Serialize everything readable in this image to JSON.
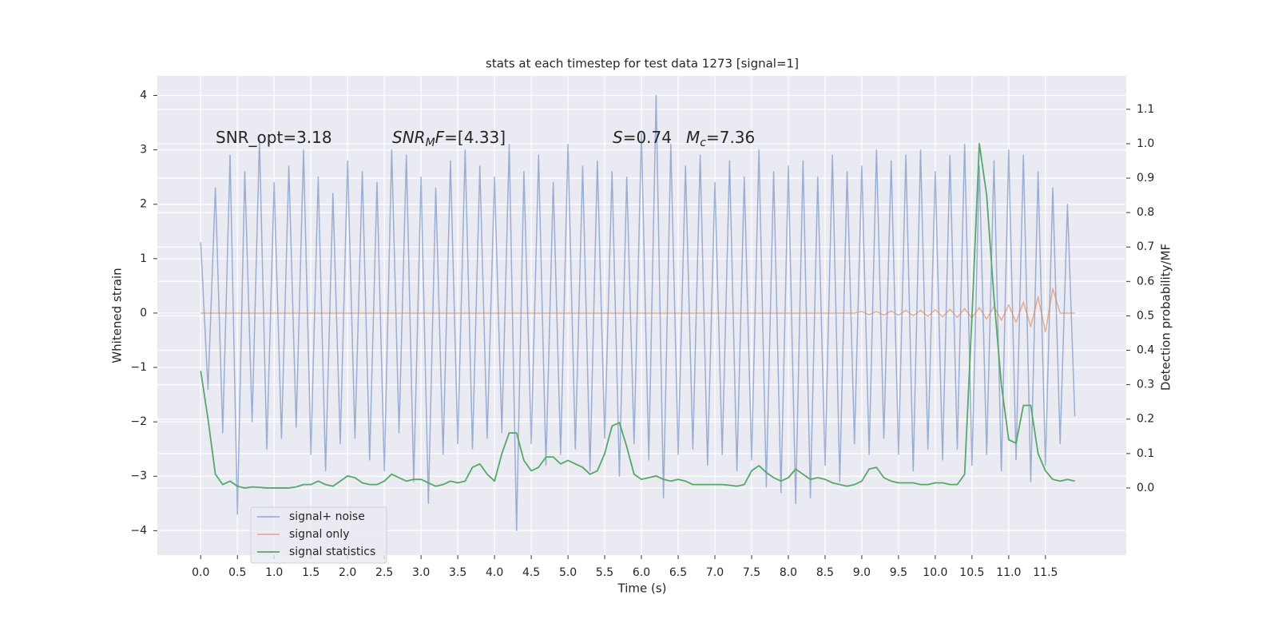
{
  "chart_data": {
    "type": "line",
    "title": "stats at each timestep for test data 1273 [signal=1]",
    "x_label": "Time (s)",
    "y_label": "Whitened strain",
    "y2_label": "Detection probability/MF",
    "annotations": [
      [
        {
          "text": "SNR_opt=3.18",
          "style": "normal"
        }
      ],
      [
        {
          "text": "SNR",
          "style": "italic"
        },
        {
          "text": "M",
          "style": "sub"
        },
        {
          "text": "F",
          "style": "italic"
        },
        {
          "text": "=[4.33]",
          "style": "normal"
        }
      ],
      [
        {
          "text": "S",
          "style": "italic"
        },
        {
          "text": "=0.74",
          "style": "normal"
        }
      ],
      [
        {
          "text": "M",
          "style": "italic"
        },
        {
          "text": "c",
          "style": "sub"
        },
        {
          "text": "=7.36",
          "style": "normal"
        }
      ]
    ],
    "x": [
      0,
      0.1,
      0.2,
      0.3,
      0.4,
      0.5,
      0.6,
      0.7,
      0.8,
      0.9,
      1,
      1.1,
      1.2,
      1.3,
      1.4,
      1.5,
      1.6,
      1.7,
      1.8,
      1.9,
      2,
      2.1,
      2.2,
      2.3,
      2.4,
      2.5,
      2.6,
      2.7,
      2.8,
      2.9,
      3,
      3.1,
      3.2,
      3.3,
      3.4,
      3.5,
      3.6,
      3.7,
      3.8,
      3.9,
      4,
      4.1,
      4.2,
      4.3,
      4.4,
      4.5,
      4.6,
      4.7,
      4.8,
      4.9,
      5,
      5.1,
      5.2,
      5.3,
      5.4,
      5.5,
      5.6,
      5.7,
      5.8,
      5.9,
      6,
      6.1,
      6.2,
      6.3,
      6.4,
      6.5,
      6.6,
      6.7,
      6.8,
      6.9,
      7,
      7.1,
      7.2,
      7.3,
      7.4,
      7.5,
      7.6,
      7.7,
      7.8,
      7.9,
      8,
      8.1,
      8.2,
      8.3,
      8.4,
      8.5,
      8.6,
      8.7,
      8.8,
      8.9,
      9,
      9.1,
      9.2,
      9.3,
      9.4,
      9.5,
      9.6,
      9.7,
      9.8,
      9.9,
      10,
      10.1,
      10.2,
      10.3,
      10.4,
      10.5,
      10.6,
      10.7,
      10.8,
      10.9,
      11,
      11.1,
      11.2,
      11.3,
      11.4,
      11.5,
      11.6,
      11.7,
      11.8,
      11.9
    ],
    "series": [
      {
        "name": "signal+ noise",
        "color": "#4c72b0",
        "opacity": 0.5,
        "values": [
          1.3,
          -1.4,
          2.3,
          -2.2,
          2.9,
          -3.7,
          2.6,
          -2.0,
          3.2,
          -2.5,
          2.4,
          -2.3,
          2.7,
          -2.1,
          3.0,
          -2.6,
          2.5,
          -2.9,
          2.2,
          -2.4,
          2.8,
          -2.3,
          2.6,
          -2.7,
          2.4,
          -2.9,
          3.0,
          -2.2,
          2.9,
          -3.1,
          2.5,
          -3.5,
          2.3,
          -2.6,
          2.8,
          -2.4,
          3.0,
          -2.5,
          2.7,
          -2.3,
          2.5,
          -2.2,
          3.1,
          -4.0,
          2.6,
          -2.4,
          2.9,
          -2.8,
          2.4,
          -2.6,
          3.1,
          -2.5,
          2.7,
          -2.9,
          2.8,
          -2.3,
          2.6,
          -3.0,
          2.5,
          -2.4,
          3.3,
          -2.7,
          4.0,
          -3.4,
          3.1,
          -2.6,
          2.7,
          -2.5,
          2.9,
          -2.8,
          2.4,
          -2.6,
          2.8,
          -2.9,
          2.5,
          -2.7,
          3.0,
          -3.2,
          2.6,
          -3.3,
          2.7,
          -3.5,
          2.8,
          -3.4,
          2.5,
          -2.8,
          2.9,
          -3.1,
          2.6,
          -2.4,
          2.7,
          -2.6,
          3.0,
          -2.3,
          2.8,
          -2.6,
          2.9,
          -2.9,
          3.0,
          -2.5,
          2.6,
          -2.7,
          2.9,
          -2.5,
          3.1,
          -2.8,
          2.7,
          -2.6,
          2.8,
          -2.9,
          3.0,
          -2.7,
          2.9,
          -3.1,
          2.6,
          -2.8,
          2.3,
          -2.4,
          2.0,
          -1.9
        ]
      },
      {
        "name": "signal only",
        "color": "#dd8452",
        "opacity": 0.6,
        "values": [
          0,
          0,
          0,
          0,
          0,
          0,
          0,
          0,
          0,
          0,
          0,
          0,
          0,
          0,
          0,
          0,
          0,
          0,
          0,
          0,
          0,
          0,
          0,
          0,
          0,
          0,
          0,
          0,
          0,
          0,
          0,
          0,
          0,
          0,
          0,
          0,
          0,
          0,
          0,
          0,
          0,
          0,
          0,
          0,
          0,
          0,
          0,
          0,
          0,
          0,
          0,
          0,
          0,
          0,
          0,
          0,
          0,
          0,
          0,
          0,
          0,
          0,
          0,
          0,
          0,
          0,
          0,
          0,
          0,
          0,
          0,
          0,
          0,
          0,
          0,
          0,
          0,
          0,
          0,
          0,
          0,
          0,
          0,
          0,
          0,
          0,
          0,
          0,
          0,
          0,
          0.03,
          -0.03,
          0.03,
          -0.04,
          0.04,
          -0.04,
          0.05,
          -0.05,
          0.05,
          -0.06,
          0.06,
          -0.07,
          0.07,
          -0.08,
          0.08,
          -0.09,
          0.1,
          -0.11,
          0.12,
          -0.13,
          0.15,
          -0.17,
          0.2,
          -0.25,
          0.3,
          -0.35,
          0.45,
          0,
          0,
          0
        ]
      },
      {
        "name": "signal statistics",
        "color": "#55a868",
        "opacity": 1,
        "axis": "y2",
        "values": [
          0.34,
          0.2,
          0.04,
          0.01,
          0.02,
          0.005,
          0,
          0.003,
          0.002,
          0,
          0,
          0,
          0,
          0.003,
          0.01,
          0.01,
          0.02,
          0.01,
          0.005,
          0.02,
          0.035,
          0.03,
          0.015,
          0.01,
          0.01,
          0.02,
          0.04,
          0.03,
          0.02,
          0.025,
          0.025,
          0.015,
          0.005,
          0.01,
          0.02,
          0.015,
          0.02,
          0.06,
          0.07,
          0.04,
          0.02,
          0.1,
          0.16,
          0.16,
          0.08,
          0.05,
          0.06,
          0.09,
          0.09,
          0.07,
          0.08,
          0.07,
          0.06,
          0.04,
          0.05,
          0.1,
          0.18,
          0.19,
          0.12,
          0.04,
          0.025,
          0.03,
          0.035,
          0.025,
          0.02,
          0.025,
          0.02,
          0.01,
          0.01,
          0.01,
          0.01,
          0.01,
          0.008,
          0.005,
          0.01,
          0.05,
          0.065,
          0.045,
          0.03,
          0.02,
          0.03,
          0.055,
          0.04,
          0.025,
          0.03,
          0.025,
          0.015,
          0.01,
          0.005,
          0.01,
          0.02,
          0.055,
          0.06,
          0.03,
          0.02,
          0.015,
          0.015,
          0.015,
          0.01,
          0.01,
          0.015,
          0.015,
          0.01,
          0.01,
          0.04,
          0.5,
          1.0,
          0.85,
          0.55,
          0.3,
          0.14,
          0.13,
          0.24,
          0.24,
          0.1,
          0.05,
          0.025,
          0.02,
          0.025,
          0.02
        ]
      }
    ],
    "xlim": [
      -0.59,
      12.6
    ],
    "xticks": [
      {
        "value": 0,
        "label": "0.0"
      },
      0.5,
      {
        "value": 1,
        "label": "1.0"
      },
      1.5,
      {
        "value": 2,
        "label": "2.0"
      },
      2.5,
      {
        "value": 3,
        "label": "3.0"
      },
      3.5,
      {
        "value": 4,
        "label": "4.0"
      },
      4.5,
      {
        "value": 5,
        "label": "5.0"
      },
      5.5,
      {
        "value": 6,
        "label": "6.0"
      },
      6.5,
      {
        "value": 7,
        "label": "7.0"
      },
      7.5,
      {
        "value": 8,
        "label": "8.0"
      },
      8.5,
      {
        "value": 9,
        "label": "9.0"
      },
      9.5,
      {
        "value": 10,
        "label": "10.0"
      },
      10.5,
      {
        "value": 11,
        "label": "11.0"
      },
      11.5
    ],
    "ylim": [
      -4.45,
      4.36
    ],
    "yticks": [
      {
        "value": -4,
        "label": "−4"
      },
      {
        "value": -3,
        "label": "−3"
      },
      {
        "value": -2,
        "label": "−2"
      },
      {
        "value": -1,
        "label": "−1"
      },
      0,
      1,
      2,
      3,
      4
    ],
    "y2lim": [
      -0.195,
      1.197
    ],
    "y2ticks": [
      {
        "value": 0,
        "label": "0.0"
      },
      0.1,
      0.2,
      0.3,
      0.4,
      0.5,
      0.6,
      0.7,
      0.8,
      0.9,
      {
        "value": 1,
        "label": "1.0"
      },
      1.1
    ],
    "grid": true,
    "legend": "lower left"
  }
}
